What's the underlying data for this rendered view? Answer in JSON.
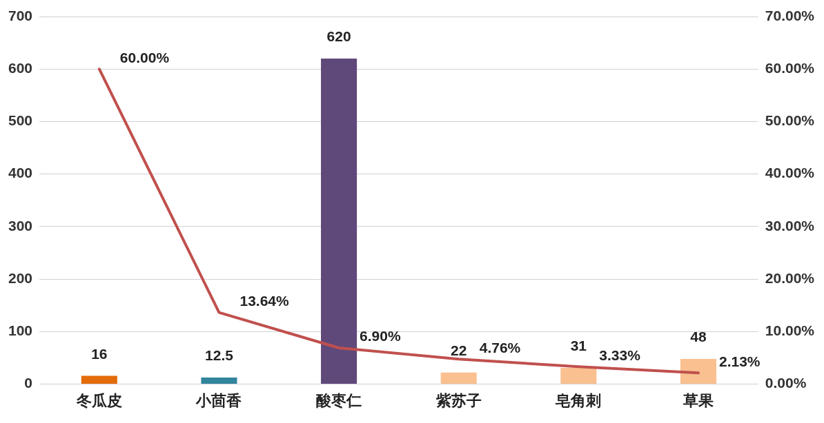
{
  "chart_data": {
    "type": "bar",
    "categories": [
      "冬瓜皮",
      "小茴香",
      "酸枣仁",
      "紫苏子",
      "皂角刺",
      "草果"
    ],
    "series": [
      {
        "colors": [
          "#e36c0a",
          "#31859c",
          "#5f497a",
          "#fac090",
          "#fac090",
          "#fac090"
        ],
        "values": [
          16,
          12.5,
          620,
          22,
          31,
          48
        ],
        "value_labels": [
          "16",
          "12.5",
          "620",
          "22",
          "31",
          "48"
        ]
      },
      {
        "type": "line",
        "axis": "y2",
        "color": "#c0504d",
        "values": [
          60,
          13.64,
          6.9,
          4.76,
          3.33,
          2.13
        ],
        "value_labels": [
          "60.00%",
          "13.64%",
          "6.90%",
          "4.76%",
          "3.33%",
          "2.13%"
        ]
      }
    ],
    "ylim": [
      0,
      700
    ],
    "yticks": [
      0,
      100,
      200,
      300,
      400,
      500,
      600,
      700
    ],
    "y2lim": [
      0,
      70
    ],
    "y2ticks": [
      {
        "value": 0,
        "label": "0.00%"
      },
      {
        "value": 10,
        "label": "10.00%"
      },
      {
        "value": 20,
        "label": "20.00%"
      },
      {
        "value": 30,
        "label": "30.00%"
      },
      {
        "value": 40,
        "label": "40.00%"
      },
      {
        "value": 50,
        "label": "50.00%"
      },
      {
        "value": 60,
        "label": "60.00%"
      },
      {
        "value": 70,
        "label": "70.00%"
      }
    ],
    "grid": "y",
    "legend": false,
    "marker": "none",
    "line_style": "solid"
  }
}
